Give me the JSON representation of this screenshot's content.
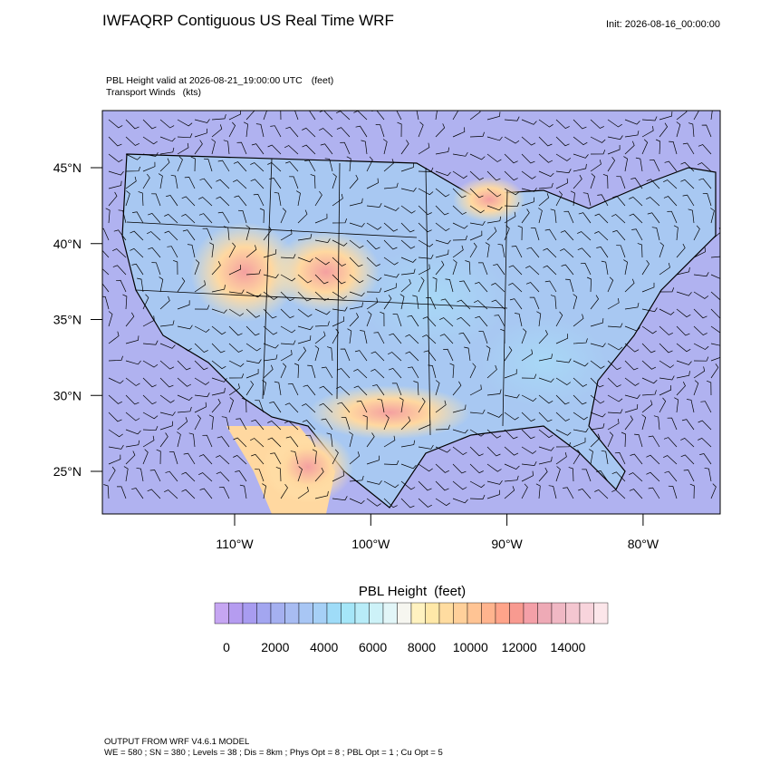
{
  "header": {
    "title": "IWFAQRP Contiguous US Real Time WRF",
    "init": "Init: 2026-08-16_00:00:00"
  },
  "map": {
    "field_label": "PBL Height valid at 2026-08-21_19:00:00 UTC",
    "field_units": "(feet)",
    "wind_label": "Transport Winds",
    "wind_units": "(kts)",
    "lat_labels": [
      "45°N",
      "40°N",
      "35°N",
      "30°N",
      "25°N"
    ],
    "lon_labels": [
      "110°W",
      "100°W",
      "90°W",
      "80°W"
    ]
  },
  "colorbar": {
    "title": "PBL Height",
    "units": "(feet)",
    "colors": [
      "#c6a6f2",
      "#b59cf0",
      "#a89cf0",
      "#a3a6f0",
      "#a5b0f0",
      "#a8bcf2",
      "#a8c6f4",
      "#a6d0f6",
      "#9fdcf8",
      "#a5e6f8",
      "#b8ecf8",
      "#cdf2f8",
      "#e2f6f8",
      "#f6f6f0",
      "#fff2c0",
      "#ffe8a8",
      "#ffdca0",
      "#ffd09a",
      "#ffc494",
      "#ffb48e",
      "#ffa48a",
      "#f89a90",
      "#f4a0a8",
      "#eeaab6",
      "#f0b8c4",
      "#f4c6d0",
      "#f8d4dc",
      "#fce6ea"
    ],
    "ticks": [
      0,
      2000,
      4000,
      6000,
      8000,
      10000,
      12000,
      14000
    ]
  },
  "footer": {
    "line1": "OUTPUT FROM WRF V4.6.1 MODEL",
    "line2": "WE = 580 ; SN = 380 ; Levels = 38 ; Dis = 8km ; Phys Opt = 8 ; PBL Opt = 1 ; Cu Opt = 5"
  }
}
